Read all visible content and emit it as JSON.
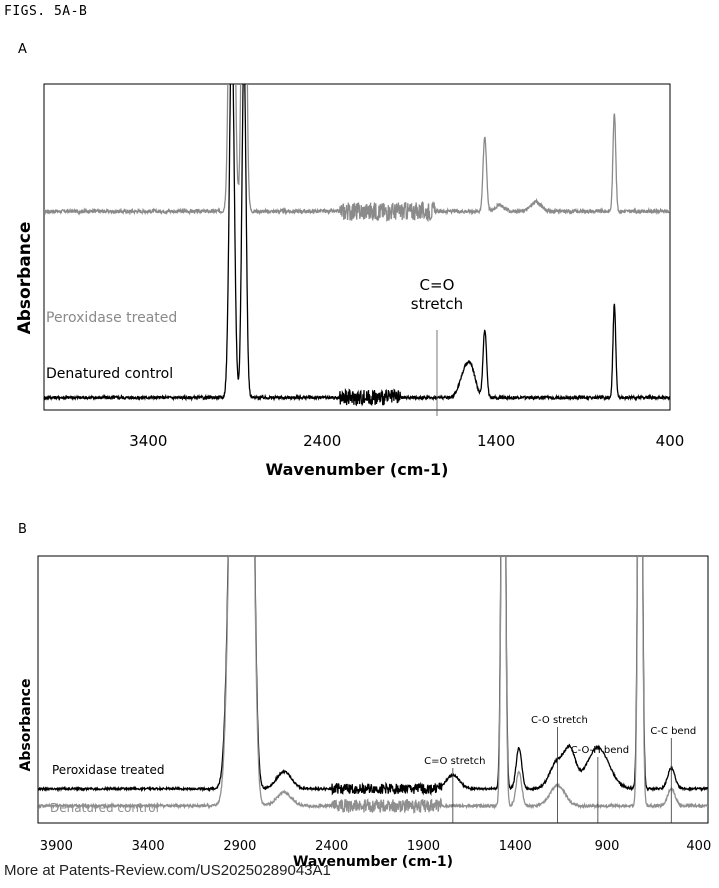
{
  "figure_title": "FIGS. 5A-B",
  "footer": "More at Patents-Review.com/US20250289043A1",
  "colors": {
    "treated_a": "#8a8a8a",
    "control_a": "#000000",
    "treated_b": "#000000",
    "control_b": "#8f8f8f"
  },
  "chart_data": [
    {
      "panel": "A",
      "type": "line",
      "xlabel": "Wavenumber (cm-1)",
      "ylabel": "Absorbance",
      "xlim": [
        4000,
        400
      ],
      "x_reversed": true,
      "x_ticks": [
        3400,
        2400,
        1400,
        400
      ],
      "grid": false,
      "series": [
        {
          "name": "Peroxidase treated",
          "offset": 0.58,
          "baseline": 0.06,
          "noise": 0.012,
          "peaks": [
            [
              2920,
              1.6,
              14
            ],
            [
              2850,
              1.5,
              12
            ],
            [
              1465,
              0.24,
              10
            ],
            [
              1380,
              0.02,
              25
            ],
            [
              1170,
              0.03,
              30
            ],
            [
              720,
              0.32,
              8
            ]
          ],
          "noisy_region": [
            1750,
            2300
          ]
        },
        {
          "name": "Denatured control",
          "offset": 0.0,
          "baseline": 0.04,
          "noise": 0.01,
          "peaks": [
            [
              2920,
              1.2,
              14
            ],
            [
              2850,
              1.1,
              12
            ],
            [
              1580,
              0.08,
              30
            ],
            [
              1540,
              0.07,
              25
            ],
            [
              1465,
              0.22,
              10
            ],
            [
              720,
              0.3,
              8
            ]
          ],
          "noisy_region": [
            1950,
            2300
          ]
        }
      ],
      "annotations": [
        {
          "text_lines": [
            "C=O",
            "stretch"
          ],
          "x": 1740
        }
      ]
    },
    {
      "panel": "B",
      "type": "line",
      "xlabel": "Wavenumber (cm-1)",
      "ylabel": "Absorbance",
      "xlim": [
        4000,
        350
      ],
      "x_reversed": true,
      "x_ticks": [
        3900,
        3400,
        2900,
        2400,
        1900,
        1400,
        900,
        400
      ],
      "grid": false,
      "series": [
        {
          "name": "Peroxidase treated",
          "offset": 0.04,
          "baseline": 0.06,
          "noise": 0.006,
          "peaks": [
            [
              2920,
              2.0,
              30
            ],
            [
              2850,
              1.9,
              22
            ],
            [
              2660,
              0.05,
              40
            ],
            [
              1740,
              0.04,
              35
            ],
            [
              1465,
              1.8,
              10
            ],
            [
              1380,
              0.12,
              15
            ],
            [
              1170,
              0.08,
              40
            ],
            [
              1100,
              0.1,
              30
            ],
            [
              950,
              0.12,
              60
            ],
            [
              720,
              2.0,
              10
            ],
            [
              550,
              0.06,
              20
            ]
          ],
          "noisy_region": [
            1800,
            2400
          ]
        },
        {
          "name": "Denatured control",
          "offset": 0.0,
          "baseline": 0.05,
          "noise": 0.008,
          "peaks": [
            [
              2920,
              2.0,
              30
            ],
            [
              2850,
              1.9,
              22
            ],
            [
              2660,
              0.04,
              40
            ],
            [
              1465,
              1.8,
              10
            ],
            [
              1380,
              0.1,
              15
            ],
            [
              1170,
              0.06,
              40
            ],
            [
              720,
              2.0,
              10
            ],
            [
              550,
              0.05,
              20
            ]
          ],
          "noisy_region": [
            1800,
            2400
          ]
        }
      ],
      "annotations": [
        {
          "text": "C=O stretch",
          "x": 1740
        },
        {
          "text": "C-O stretch",
          "x": 1170
        },
        {
          "text": "C-O-H bend",
          "x": 950
        },
        {
          "text": "C-C bend",
          "x": 550
        }
      ]
    }
  ]
}
